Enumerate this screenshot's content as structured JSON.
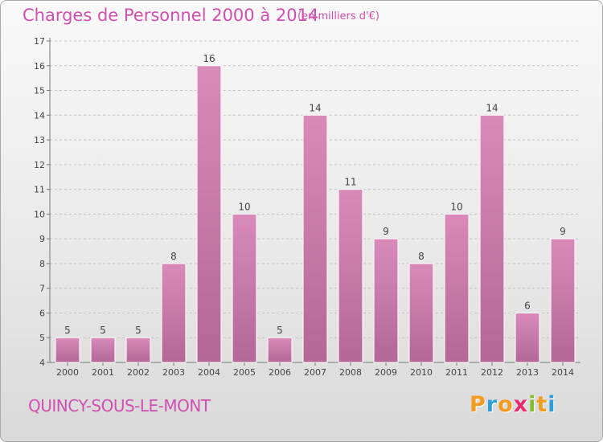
{
  "header": {
    "title": "Charges de Personnel 2000 à 2014",
    "subtitle": "(en milliers d'€)"
  },
  "footer": {
    "commune": "QUINCY-SOUS-LE-MONT",
    "logo": {
      "letters": [
        "P",
        "r",
        "o",
        "x",
        "i",
        "t",
        "i"
      ],
      "colors": [
        "#f29b1e",
        "#2d9fd9",
        "#f29b1e",
        "#e62b6e",
        "#86bd2a",
        "#f29b1e",
        "#2d9fd9"
      ]
    }
  },
  "chart_data": {
    "type": "bar",
    "title": "Charges de Personnel 2000 à 2014",
    "subtitle": "(en milliers d'€)",
    "categories": [
      "2000",
      "2001",
      "2002",
      "2003",
      "2004",
      "2005",
      "2006",
      "2007",
      "2008",
      "2009",
      "2010",
      "2011",
      "2012",
      "2013",
      "2014"
    ],
    "values": [
      5,
      5,
      5,
      8,
      16,
      10,
      5,
      14,
      11,
      9,
      8,
      10,
      14,
      6,
      9
    ],
    "ylim": [
      4,
      17
    ],
    "yticks": [
      4,
      5,
      6,
      7,
      8,
      9,
      10,
      11,
      12,
      13,
      14,
      15,
      16,
      17
    ],
    "grid": true,
    "bar_color": "#d98ab8",
    "bar_color_dark": "#b46797",
    "data_labels": true
  }
}
